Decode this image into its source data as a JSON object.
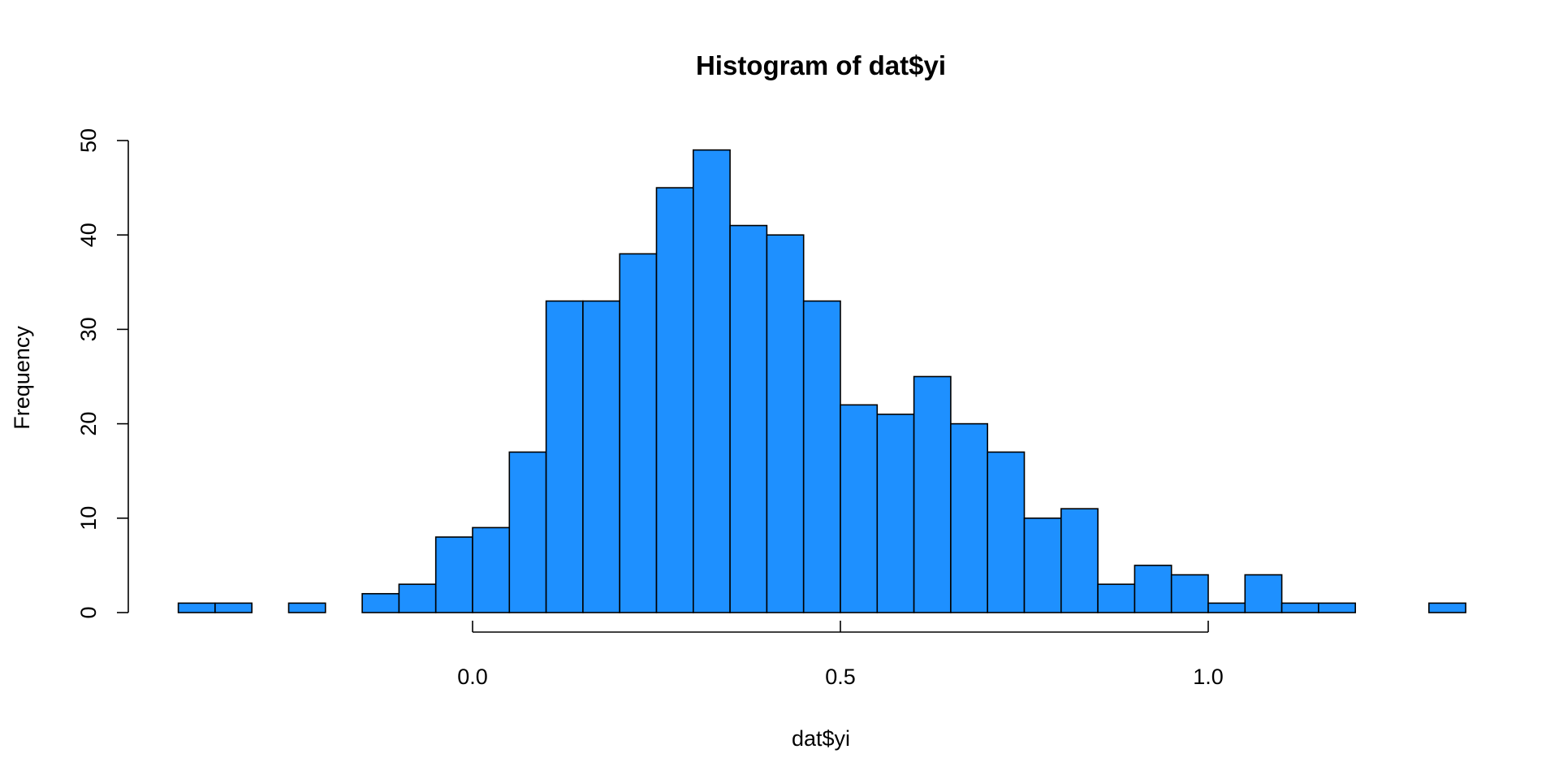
{
  "chart_data": {
    "type": "bar",
    "title": "Histogram of dat$yi",
    "xlabel": "dat$yi",
    "ylabel": "Frequency",
    "bar_color": "#1e90ff",
    "edge_color": "#000000",
    "bin_width": 0.05,
    "xlim": [
      -0.4,
      1.35
    ],
    "ylim": [
      0,
      50
    ],
    "x_ticks": [
      0.0,
      0.5,
      1.0
    ],
    "x_tick_labels": [
      "0.0",
      "0.5",
      "1.0"
    ],
    "y_ticks": [
      0,
      10,
      20,
      30,
      40,
      50
    ],
    "y_tick_labels": [
      "0",
      "10",
      "20",
      "30",
      "40",
      "50"
    ],
    "bins": [
      {
        "start": -0.4,
        "end": -0.35,
        "count": 1
      },
      {
        "start": -0.35,
        "end": -0.3,
        "count": 1
      },
      {
        "start": -0.3,
        "end": -0.25,
        "count": 0
      },
      {
        "start": -0.25,
        "end": -0.2,
        "count": 1
      },
      {
        "start": -0.2,
        "end": -0.15,
        "count": 0
      },
      {
        "start": -0.15,
        "end": -0.1,
        "count": 2
      },
      {
        "start": -0.1,
        "end": -0.05,
        "count": 3
      },
      {
        "start": -0.05,
        "end": 0.0,
        "count": 8
      },
      {
        "start": 0.0,
        "end": 0.05,
        "count": 9
      },
      {
        "start": 0.05,
        "end": 0.1,
        "count": 17
      },
      {
        "start": 0.1,
        "end": 0.15,
        "count": 33
      },
      {
        "start": 0.15,
        "end": 0.2,
        "count": 33
      },
      {
        "start": 0.2,
        "end": 0.25,
        "count": 38
      },
      {
        "start": 0.25,
        "end": 0.3,
        "count": 45
      },
      {
        "start": 0.3,
        "end": 0.35,
        "count": 49
      },
      {
        "start": 0.35,
        "end": 0.4,
        "count": 41
      },
      {
        "start": 0.4,
        "end": 0.45,
        "count": 40
      },
      {
        "start": 0.45,
        "end": 0.5,
        "count": 33
      },
      {
        "start": 0.5,
        "end": 0.55,
        "count": 22
      },
      {
        "start": 0.55,
        "end": 0.6,
        "count": 21
      },
      {
        "start": 0.6,
        "end": 0.65,
        "count": 25
      },
      {
        "start": 0.65,
        "end": 0.7,
        "count": 20
      },
      {
        "start": 0.7,
        "end": 0.75,
        "count": 17
      },
      {
        "start": 0.75,
        "end": 0.8,
        "count": 10
      },
      {
        "start": 0.8,
        "end": 0.85,
        "count": 11
      },
      {
        "start": 0.85,
        "end": 0.9,
        "count": 3
      },
      {
        "start": 0.9,
        "end": 0.95,
        "count": 5
      },
      {
        "start": 0.95,
        "end": 1.0,
        "count": 4
      },
      {
        "start": 1.0,
        "end": 1.05,
        "count": 1
      },
      {
        "start": 1.05,
        "end": 1.1,
        "count": 4
      },
      {
        "start": 1.1,
        "end": 1.15,
        "count": 1
      },
      {
        "start": 1.15,
        "end": 1.2,
        "count": 1
      },
      {
        "start": 1.2,
        "end": 1.25,
        "count": 0
      },
      {
        "start": 1.25,
        "end": 1.3,
        "count": 0
      },
      {
        "start": 1.3,
        "end": 1.35,
        "count": 1
      }
    ]
  }
}
